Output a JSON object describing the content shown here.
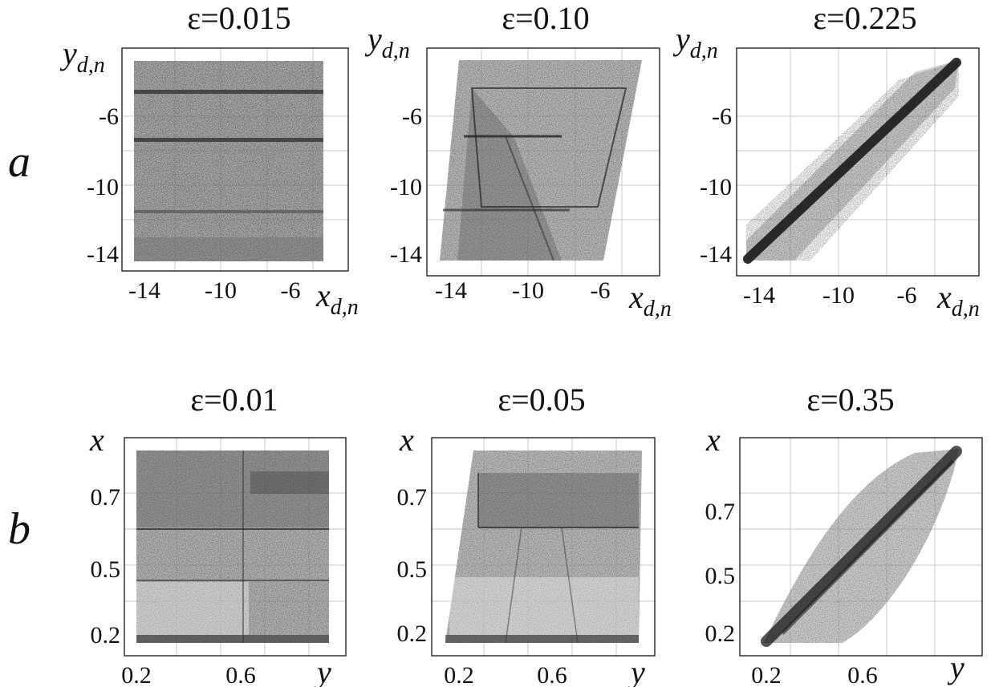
{
  "rows": [
    {
      "label": "a",
      "xlabel_main": "x",
      "xlabel_sub": "d,n",
      "ylabel_main": "y",
      "ylabel_sub": "d,n"
    },
    {
      "label": "b",
      "xlabel_main": "y",
      "xlabel_sub": "",
      "ylabel_main": "x",
      "ylabel_sub": ""
    }
  ],
  "chart_data": [
    {
      "type": "scatter",
      "title": "ε=0.015",
      "row": "a",
      "xticks": [
        "-14",
        "-10",
        "-6"
      ],
      "yticks": [
        "-6",
        "-10",
        "-14"
      ],
      "xlim": [
        -15,
        -3
      ],
      "ylim": [
        -15,
        -3
      ],
      "structure": "filled square with horizontal bands",
      "series": [
        {
          "density": "uniform square",
          "x": [
            -15,
            -3
          ],
          "y": [
            -15,
            -3
          ],
          "bands_y": [
            -4,
            -7.5,
            -12
          ]
        }
      ]
    },
    {
      "type": "scatter",
      "title": "ε=0.10",
      "row": "a",
      "xticks": [
        "-14",
        "-10",
        "-6"
      ],
      "yticks": [
        "-6",
        "-10",
        "-14"
      ],
      "xlim": [
        -15,
        -3
      ],
      "ylim": [
        -15,
        -3
      ],
      "structure": "parallelogram region with internal polygonal sub-structure",
      "series": [
        {
          "density": "parallelogram",
          "corners": [
            [
              -15,
              -15
            ],
            [
              -6,
              -15
            ],
            [
              -3,
              -3
            ],
            [
              -13.5,
              -3
            ]
          ]
        }
      ]
    },
    {
      "type": "scatter",
      "title": "ε=0.225",
      "row": "a",
      "xticks": [
        "-14",
        "-10",
        "-6"
      ],
      "yticks": [
        "-6",
        "-10",
        "-14"
      ],
      "xlim": [
        -15,
        -3
      ],
      "ylim": [
        -15,
        -3
      ],
      "structure": "points concentrated along diagonal y = x",
      "series": [
        {
          "density": "diagonal band",
          "from": [
            -15,
            -15
          ],
          "to": [
            -3,
            -3
          ]
        }
      ]
    },
    {
      "type": "scatter",
      "title": "ε=0.01",
      "row": "b",
      "xticks": [
        "0.2",
        "0.6"
      ],
      "yticks": [
        "0.7",
        "0.5",
        "0.2"
      ],
      "xlim": [
        0.15,
        0.95
      ],
      "ylim": [
        0.1,
        0.9
      ],
      "structure": "filled square with rectangular blocks",
      "series": [
        {
          "density": "uniform square",
          "x": [
            0.15,
            0.95
          ],
          "y": [
            0.1,
            0.9
          ]
        }
      ]
    },
    {
      "type": "scatter",
      "title": "ε=0.05",
      "row": "b",
      "xticks": [
        "0.2",
        "0.6"
      ],
      "yticks": [
        "0.7",
        "0.5",
        "0.2"
      ],
      "xlim": [
        0.15,
        0.95
      ],
      "ylim": [
        0.1,
        0.9
      ],
      "structure": "parallelogram region with internal polygonal sub-structure",
      "series": [
        {
          "density": "parallelogram",
          "corners": [
            [
              0.17,
              0.12
            ],
            [
              0.92,
              0.12
            ],
            [
              0.93,
              0.88
            ],
            [
              0.27,
              0.88
            ]
          ]
        }
      ]
    },
    {
      "type": "scatter",
      "title": "ε=0.35",
      "row": "b",
      "xticks": [
        "0.2",
        "0.6"
      ],
      "yticks": [
        "0.7",
        "0.5",
        "0.2"
      ],
      "xlim": [
        0.15,
        0.95
      ],
      "ylim": [
        0.1,
        0.9
      ],
      "structure": "points concentrated along diagonal inside an elongated lens",
      "series": [
        {
          "density": "diagonal lens",
          "from": [
            0.2,
            0.12
          ],
          "to": [
            0.93,
            0.88
          ]
        }
      ]
    }
  ]
}
